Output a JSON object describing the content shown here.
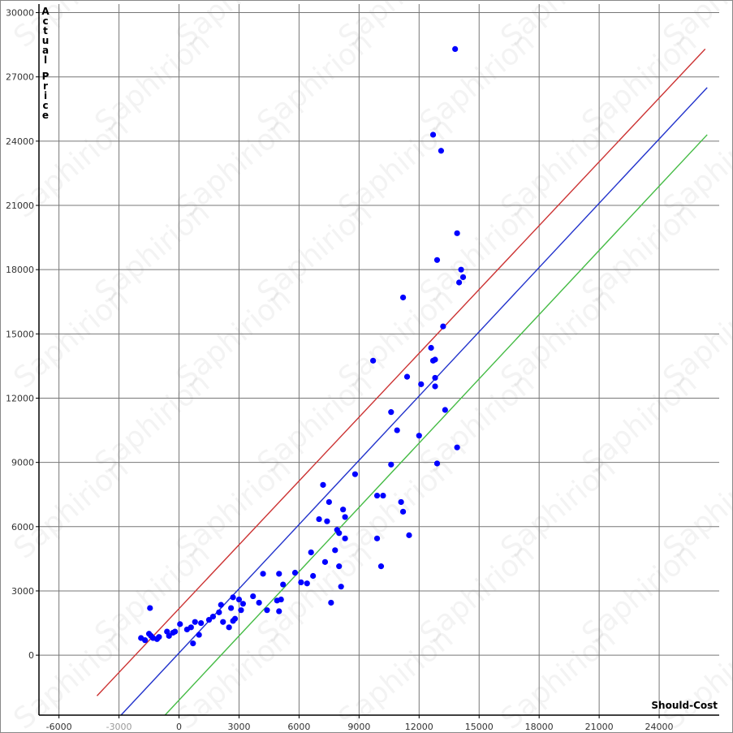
{
  "chart_data": {
    "type": "scatter",
    "xlabel": "Should-Cost",
    "ylabel": "Actual Price",
    "watermark": "Saphirion",
    "xlim": [
      -7000,
      27000
    ],
    "ylim": [
      -2800,
      30400
    ],
    "x_ticks": [
      -6000,
      -3000,
      0,
      3000,
      6000,
      9000,
      12000,
      15000,
      18000,
      21000,
      24000
    ],
    "x_tick_labels": [
      "-6000",
      "-3000",
      "0",
      "3000",
      "6000",
      "9000",
      "12000",
      "15000",
      "18000",
      "21000",
      "24000"
    ],
    "y_ticks": [
      0,
      3000,
      6000,
      9000,
      12000,
      15000,
      18000,
      21000,
      24000,
      27000,
      30000
    ],
    "y_tick_labels": [
      "0",
      "3000",
      "6000",
      "9000",
      "12000",
      "15000",
      "18000",
      "21000",
      "24000",
      "27000",
      "30000"
    ],
    "grid": true,
    "colors": {
      "points": "#0000ff",
      "upper_line": "#cc3333",
      "middle_line": "#2233cc",
      "lower_line": "#44bb44",
      "grid": "#777777",
      "background": "#ffffff"
    },
    "lines": [
      {
        "color_key": "upper_line",
        "x": [
          -4100,
          26300
        ],
        "y": [
          -1900,
          28300
        ]
      },
      {
        "color_key": "middle_line",
        "x": [
          -2900,
          26400
        ],
        "y": [
          -2800,
          26500
        ]
      },
      {
        "color_key": "lower_line",
        "x": [
          -700,
          26400
        ],
        "y": [
          -2800,
          24300
        ]
      }
    ],
    "points": [
      {
        "x": -1900,
        "y": 800
      },
      {
        "x": -1700,
        "y": 700
      },
      {
        "x": -1500,
        "y": 1000
      },
      {
        "x": -1400,
        "y": 900
      },
      {
        "x": -1300,
        "y": 800
      },
      {
        "x": -1100,
        "y": 750
      },
      {
        "x": -1000,
        "y": 850
      },
      {
        "x": -1450,
        "y": 2200
      },
      {
        "x": -600,
        "y": 1100
      },
      {
        "x": -500,
        "y": 900
      },
      {
        "x": -300,
        "y": 1050
      },
      {
        "x": -200,
        "y": 1100
      },
      {
        "x": 50,
        "y": 1450
      },
      {
        "x": 400,
        "y": 1200
      },
      {
        "x": 600,
        "y": 1300
      },
      {
        "x": 700,
        "y": 550
      },
      {
        "x": 800,
        "y": 1550
      },
      {
        "x": 1000,
        "y": 950
      },
      {
        "x": 1100,
        "y": 1500
      },
      {
        "x": 1500,
        "y": 1650
      },
      {
        "x": 1700,
        "y": 1800
      },
      {
        "x": 2000,
        "y": 2000
      },
      {
        "x": 2100,
        "y": 2350
      },
      {
        "x": 2200,
        "y": 1550
      },
      {
        "x": 2500,
        "y": 1300
      },
      {
        "x": 2600,
        "y": 2200
      },
      {
        "x": 2700,
        "y": 1600
      },
      {
        "x": 2700,
        "y": 2700
      },
      {
        "x": 2800,
        "y": 1700
      },
      {
        "x": 3000,
        "y": 2600
      },
      {
        "x": 3100,
        "y": 2100
      },
      {
        "x": 3200,
        "y": 2400
      },
      {
        "x": 3700,
        "y": 2750
      },
      {
        "x": 4000,
        "y": 2450
      },
      {
        "x": 4200,
        "y": 3800
      },
      {
        "x": 4400,
        "y": 2100
      },
      {
        "x": 4900,
        "y": 2550
      },
      {
        "x": 5000,
        "y": 3800
      },
      {
        "x": 5000,
        "y": 2050
      },
      {
        "x": 5100,
        "y": 2600
      },
      {
        "x": 5200,
        "y": 3300
      },
      {
        "x": 5800,
        "y": 3850
      },
      {
        "x": 6100,
        "y": 3400
      },
      {
        "x": 6400,
        "y": 3350
      },
      {
        "x": 6600,
        "y": 4800
      },
      {
        "x": 6700,
        "y": 3700
      },
      {
        "x": 7000,
        "y": 6350
      },
      {
        "x": 7200,
        "y": 7950
      },
      {
        "x": 7300,
        "y": 4350
      },
      {
        "x": 7400,
        "y": 6250
      },
      {
        "x": 7500,
        "y": 7150
      },
      {
        "x": 7600,
        "y": 2450
      },
      {
        "x": 7800,
        "y": 4900
      },
      {
        "x": 7900,
        "y": 5850
      },
      {
        "x": 8000,
        "y": 5700
      },
      {
        "x": 8000,
        "y": 4150
      },
      {
        "x": 8100,
        "y": 3200
      },
      {
        "x": 8200,
        "y": 6800
      },
      {
        "x": 8300,
        "y": 6450
      },
      {
        "x": 8300,
        "y": 5450
      },
      {
        "x": 8800,
        "y": 8450
      },
      {
        "x": 9700,
        "y": 13750
      },
      {
        "x": 9900,
        "y": 7450
      },
      {
        "x": 9900,
        "y": 5450
      },
      {
        "x": 10100,
        "y": 4150
      },
      {
        "x": 10200,
        "y": 7450
      },
      {
        "x": 10600,
        "y": 11350
      },
      {
        "x": 10600,
        "y": 8900
      },
      {
        "x": 10900,
        "y": 10500
      },
      {
        "x": 11100,
        "y": 7150
      },
      {
        "x": 11200,
        "y": 16700
      },
      {
        "x": 11200,
        "y": 6700
      },
      {
        "x": 11400,
        "y": 13000
      },
      {
        "x": 11500,
        "y": 5600
      },
      {
        "x": 12000,
        "y": 10250
      },
      {
        "x": 12100,
        "y": 12650
      },
      {
        "x": 12600,
        "y": 14350
      },
      {
        "x": 12700,
        "y": 24300
      },
      {
        "x": 12700,
        "y": 13750
      },
      {
        "x": 12800,
        "y": 13800
      },
      {
        "x": 12800,
        "y": 12950
      },
      {
        "x": 12800,
        "y": 12550
      },
      {
        "x": 12900,
        "y": 18450
      },
      {
        "x": 12900,
        "y": 8950
      },
      {
        "x": 13100,
        "y": 23550
      },
      {
        "x": 13200,
        "y": 15350
      },
      {
        "x": 13300,
        "y": 11450
      },
      {
        "x": 13800,
        "y": 28300
      },
      {
        "x": 13900,
        "y": 19700
      },
      {
        "x": 13900,
        "y": 9700
      },
      {
        "x": 14000,
        "y": 17400
      },
      {
        "x": 14100,
        "y": 18000
      },
      {
        "x": 14200,
        "y": 17650
      }
    ]
  }
}
